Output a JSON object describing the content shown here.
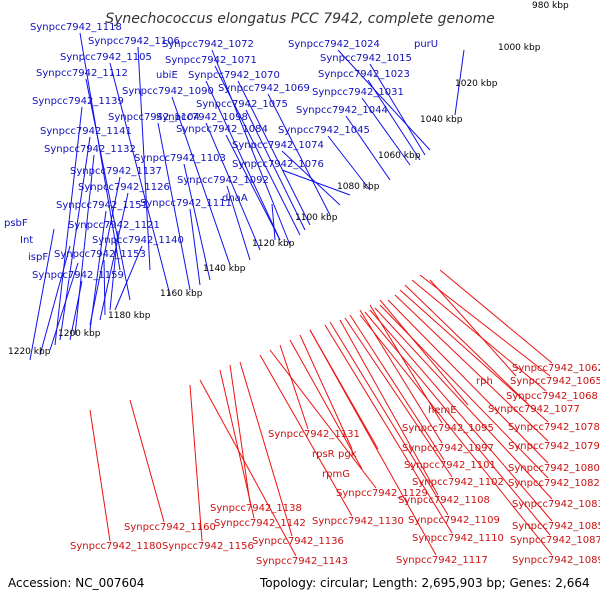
{
  "title": "Synechococcus elongatus PCC 7942, complete genome",
  "footer": {
    "accession": "Accession: NC_007604",
    "topology": "Topology: circular; Length: 2,695,903 bp; Genes: 2,664"
  },
  "colors": {
    "forward": "#1010ee",
    "reverse": "#ee1111",
    "backbone": "#888888",
    "dotted": "#228822"
  },
  "kbp_ticks": [
    "980 kbp",
    "1000 kbp",
    "1020 kbp",
    "1040 kbp",
    "1060 kbp",
    "1080 kbp",
    "1100 kbp",
    "1120 kbp",
    "1140 kbp",
    "1160 kbp",
    "1180 kbp",
    "1200 kbp",
    "1220 kbp"
  ],
  "top_labels": [
    "Synpcc7942_1118",
    "Synpcc7942_1106",
    "Synpcc7942_1105",
    "Synpcc7942_1112",
    "Synpcc7942_1072",
    "Synpcc7942_1071",
    "ubiE",
    "Synpcc7942_1070",
    "Synpcc7942_1090",
    "Synpcc7942_1069",
    "Synpcc7942_1075",
    "Synpcc7942_1139",
    "Synpcc7942_1104",
    "Synpcc7942_1098",
    "Synpcc7942_1084",
    "Synpcc7942_1141",
    "Synpcc7942_1132",
    "Synpcc7942_1103",
    "Synpcc7942_1074",
    "Synpcc7942_1137",
    "Synpcc7942_1076",
    "Synpcc7942_1092",
    "Synpcc7942_1126",
    "Synpcc7942_1151",
    "Synpcc7942_1111",
    "dnaA",
    "psbF",
    "Synpcc7942_1121",
    "Int",
    "Synpcc7942_1140",
    "ispF",
    "Synpcc7942_1153",
    "Synpcc7942_1159",
    "Synpcc7942_1024",
    "purU",
    "Synpcc7942_1015",
    "Synpcc7942_1023",
    "Synpcc7942_1031",
    "Synpcc7942_1044",
    "Synpcc7942_1045"
  ],
  "bottom_labels": [
    "Synpcc7942_1062",
    "rph",
    "Synpcc7942_1065",
    "Synpcc7942_1068",
    "Synpcc7942_1077",
    "hemE",
    "Synpcc7942_1078",
    "Synpcc7942_1095",
    "Synpcc7942_1079",
    "Synpcc7942_1097",
    "Synpcc7942_1131",
    "rpsR",
    "pgk",
    "Synpcc7942_1101",
    "Synpcc7942_1080",
    "rpmG",
    "Synpcc7942_1102",
    "Synpcc7942_1082",
    "Synpcc7942_1129",
    "Synpcc7942_1108",
    "Synpcc7942_1138",
    "Synpcc7942_1083",
    "Synpcc7942_1130",
    "Synpcc7942_1109",
    "Synpcc7942_1142",
    "Synpcc7942_1085",
    "Synpcc7942_1160",
    "Synpcc7942_1136",
    "Synpcc7942_1110",
    "Synpcc7942_1087",
    "Synpcc7942_1180",
    "Synpcc7942_1156",
    "Synpcc7942_1117",
    "Synpcc7942_1089",
    "Synpcc7942_1143"
  ]
}
